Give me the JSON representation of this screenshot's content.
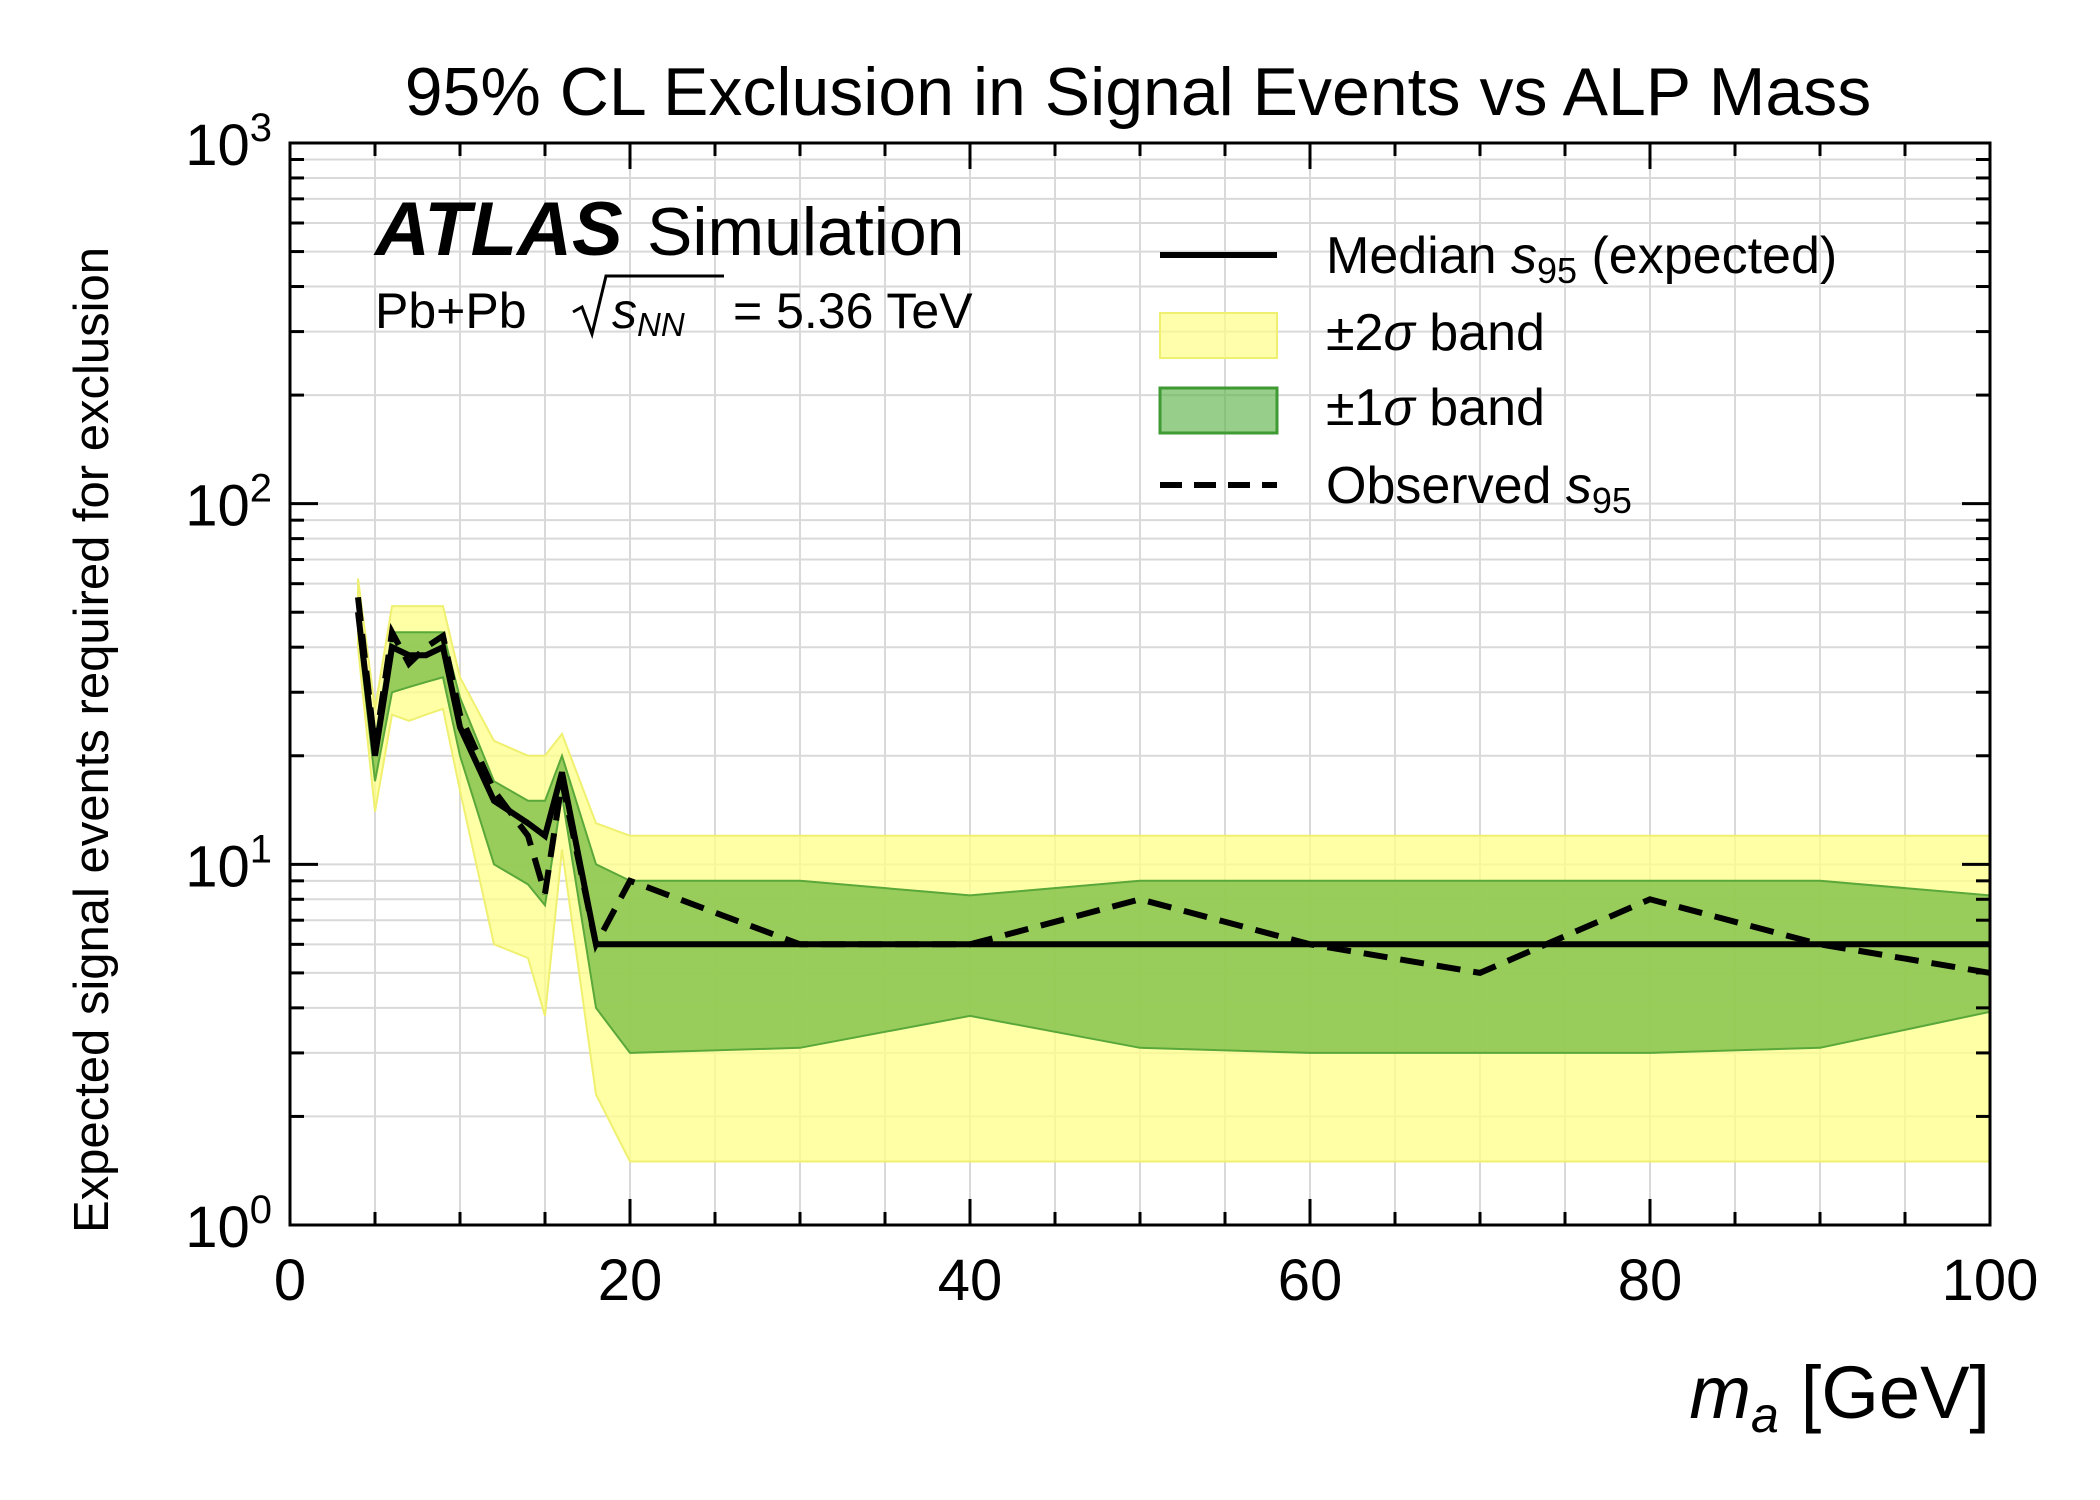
{
  "chart_data": {
    "type": "line",
    "title": "95% CL Exclusion in Signal Events vs ALP Mass",
    "experiment_label": "ATLAS",
    "experiment_sublabel": "Simulation",
    "collision_prefix": "Pb+Pb",
    "collision_sqrt_var": "s",
    "collision_sqrt_sub": "NN",
    "collision_value": "= 5.36 TeV",
    "xlabel_var": "m",
    "xlabel_sub": "a",
    "xlabel_unit": "[GeV]",
    "ylabel": "Expected signal events required for exclusion",
    "xlim": [
      0,
      100
    ],
    "ylim": [
      1,
      1000
    ],
    "yscale": "log",
    "grid": true,
    "legend_position": "top-right",
    "x_ticks": [
      "0",
      "20",
      "40",
      "60",
      "80",
      "100"
    ],
    "y_ticks": [
      {
        "base": "10",
        "exp": "0"
      },
      {
        "base": "10",
        "exp": "1"
      },
      {
        "base": "10",
        "exp": "2"
      },
      {
        "base": "10",
        "exp": "3"
      }
    ],
    "legend": {
      "median": {
        "prefix": "Median ",
        "var": "s",
        "sub": "95",
        "suffix": " (expected)"
      },
      "band2": {
        "prefix": "±2",
        "sym": "σ",
        "suffix": " band"
      },
      "band1": {
        "prefix": "±1",
        "sym": "σ",
        "suffix": " band"
      },
      "observed": {
        "prefix": "Observed ",
        "var": "s",
        "sub": "95"
      }
    },
    "x": [
      4,
      5,
      6,
      7,
      8,
      9,
      10,
      12,
      14,
      15,
      16,
      18,
      20,
      30,
      40,
      50,
      60,
      70,
      80,
      90,
      100
    ],
    "series": [
      {
        "name": "Median s95 (expected)",
        "style": "solid",
        "color": "#000000",
        "values": [
          50,
          20,
          40,
          38,
          38,
          40,
          24,
          15,
          13,
          12,
          18,
          6,
          6,
          6,
          6,
          6,
          6,
          6,
          6,
          6,
          6
        ]
      },
      {
        "name": "Observed s95",
        "style": "dashed",
        "color": "#000000",
        "values": [
          55,
          21,
          44,
          36,
          40,
          43,
          26,
          16,
          12,
          8.3,
          17,
          6,
          9,
          6,
          6,
          8,
          6,
          5,
          8,
          6,
          5
        ]
      }
    ],
    "bands": [
      {
        "name": "±2σ band",
        "color": "#ffff88",
        "stroke": "#f0f070",
        "lower": [
          40,
          14,
          26,
          25,
          26,
          27,
          16,
          6,
          5.5,
          3.8,
          11,
          2.3,
          1.5,
          1.5,
          1.5,
          1.5,
          1.5,
          1.5,
          1.5,
          1.5,
          1.5
        ],
        "upper": [
          62,
          27,
          52,
          52,
          52,
          52,
          33,
          22,
          20,
          20,
          23,
          13,
          12,
          12,
          12,
          12,
          12,
          12,
          12,
          12,
          12
        ]
      },
      {
        "name": "±1σ band",
        "color": "#86c44e",
        "stroke": "#5aa83a",
        "lower": [
          45,
          17,
          30,
          31,
          32,
          33,
          20,
          10,
          8.8,
          7.7,
          15.5,
          4,
          3,
          3.1,
          3.8,
          3.1,
          3,
          3,
          3,
          3.1,
          3.9
        ],
        "upper": [
          55,
          22,
          44,
          44,
          44,
          44,
          29,
          17,
          15,
          15,
          20,
          10,
          9,
          9,
          8.2,
          9,
          9,
          9,
          9,
          9,
          8.2
        ]
      }
    ]
  }
}
